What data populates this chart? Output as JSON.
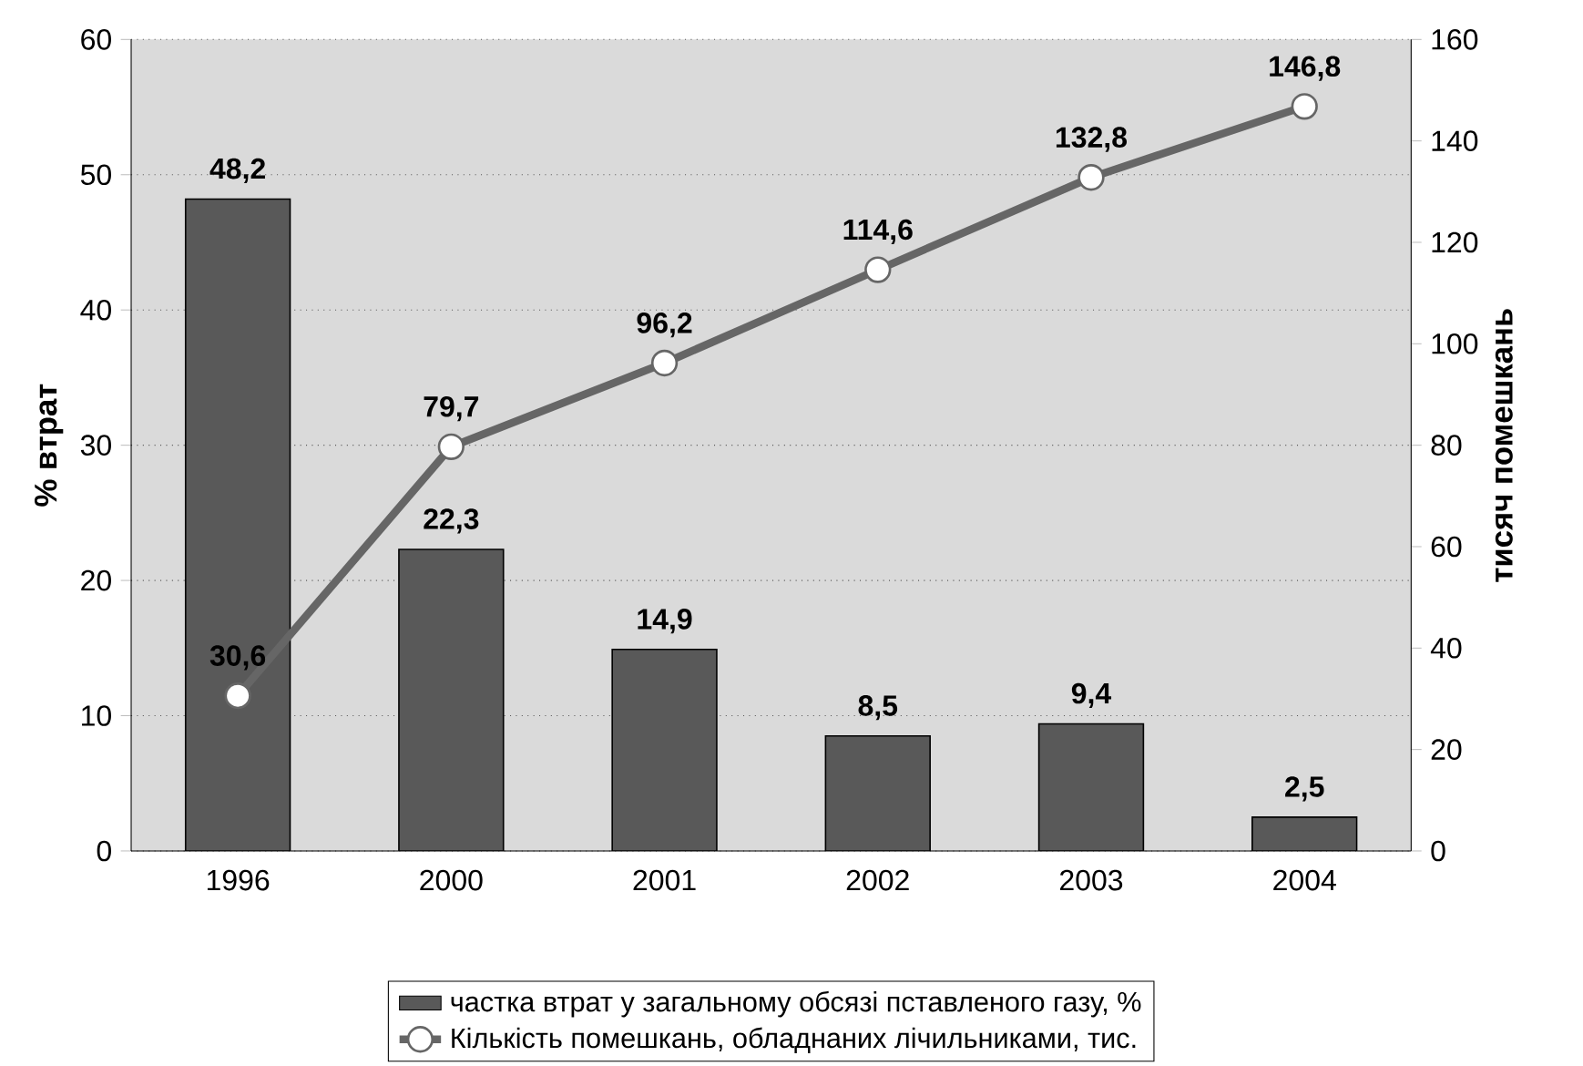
{
  "chart_data": {
    "type": "bar",
    "categories": [
      "1996",
      "2000",
      "2001",
      "2002",
      "2003",
      "2004"
    ],
    "ylabel": "% втрат",
    "y2label": "тисяч помешкань",
    "ylim": [
      0,
      60
    ],
    "yticks": [
      0,
      10,
      20,
      30,
      40,
      50,
      60
    ],
    "y2lim": [
      0,
      160
    ],
    "y2ticks": [
      0,
      20,
      40,
      60,
      80,
      100,
      120,
      140,
      160
    ],
    "grid": "y",
    "legend": "bottom",
    "series": [
      {
        "name": "частка втрат у  загальному обсязі пставленого газу, %",
        "color": "#595959",
        "values": [
          48.2,
          22.3,
          14.9,
          8.5,
          9.4,
          2.5
        ],
        "value_labels": [
          "48,2",
          "22,3",
          "14,9",
          "8,5",
          "9,4",
          "2,5"
        ]
      },
      {
        "name": "Кількість помешкань, обладнаних лічильниками, тис.",
        "type": "line",
        "axis": "y2",
        "color": "#666666",
        "marker": "circle",
        "line_style": "solid",
        "values": [
          30.6,
          79.7,
          96.2,
          114.6,
          132.8,
          146.8
        ],
        "value_labels": [
          "30,6",
          "79,7",
          "96,2",
          "114,6",
          "132,8",
          "146,8"
        ]
      }
    ]
  }
}
